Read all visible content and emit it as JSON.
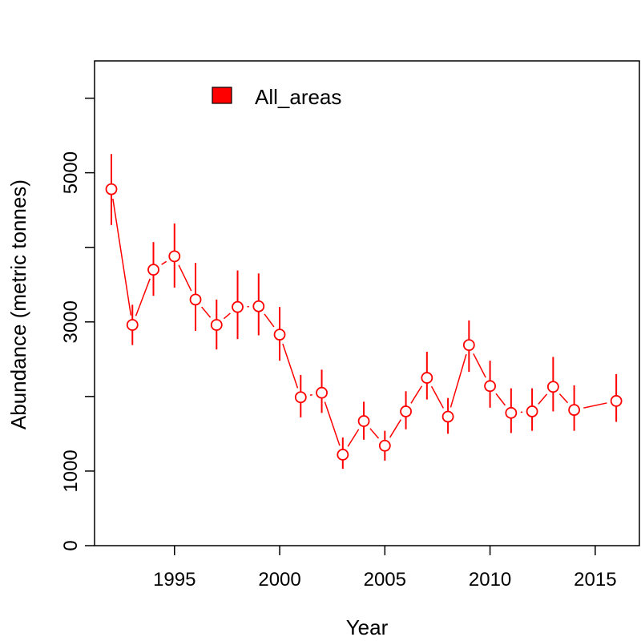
{
  "chart_data": {
    "type": "scatter",
    "title": "",
    "xlabel": "Year",
    "ylabel": "Abundance (metric tonnes)",
    "xlim": [
      1991.2,
      2017.1
    ],
    "ylim": [
      0,
      6500
    ],
    "x_ticks": [
      1995,
      2000,
      2005,
      2010,
      2015
    ],
    "y_ticks": [
      0,
      1000,
      3000,
      5000
    ],
    "grid": false,
    "legend_position": "top-left",
    "series": [
      {
        "name": "All_areas",
        "color": "#ff0000",
        "points": [
          {
            "x": 1992,
            "y": 4780,
            "lo": 4300,
            "hi": 5250
          },
          {
            "x": 1993,
            "y": 2960,
            "lo": 2690,
            "hi": 3230
          },
          {
            "x": 1994,
            "y": 3700,
            "lo": 3350,
            "hi": 4070
          },
          {
            "x": 1995,
            "y": 3880,
            "lo": 3460,
            "hi": 4320
          },
          {
            "x": 1996,
            "y": 3300,
            "lo": 2880,
            "hi": 3790
          },
          {
            "x": 1997,
            "y": 2960,
            "lo": 2630,
            "hi": 3300
          },
          {
            "x": 1998,
            "y": 3200,
            "lo": 2770,
            "hi": 3690
          },
          {
            "x": 1999,
            "y": 3210,
            "lo": 2820,
            "hi": 3650
          },
          {
            "x": 2000,
            "y": 2830,
            "lo": 2480,
            "hi": 3200
          },
          {
            "x": 2001,
            "y": 1990,
            "lo": 1720,
            "hi": 2290
          },
          {
            "x": 2002,
            "y": 2050,
            "lo": 1780,
            "hi": 2360
          },
          {
            "x": 2003,
            "y": 1220,
            "lo": 1030,
            "hi": 1450
          },
          {
            "x": 2004,
            "y": 1670,
            "lo": 1420,
            "hi": 1930
          },
          {
            "x": 2005,
            "y": 1340,
            "lo": 1140,
            "hi": 1540
          },
          {
            "x": 2006,
            "y": 1800,
            "lo": 1560,
            "hi": 2070
          },
          {
            "x": 2007,
            "y": 2250,
            "lo": 1960,
            "hi": 2600
          },
          {
            "x": 2008,
            "y": 1730,
            "lo": 1500,
            "hi": 1980
          },
          {
            "x": 2009,
            "y": 2690,
            "lo": 2330,
            "hi": 3020
          },
          {
            "x": 2010,
            "y": 2140,
            "lo": 1850,
            "hi": 2480
          },
          {
            "x": 2011,
            "y": 1780,
            "lo": 1510,
            "hi": 2110
          },
          {
            "x": 2012,
            "y": 1800,
            "lo": 1540,
            "hi": 2110
          },
          {
            "x": 2013,
            "y": 2130,
            "lo": 1800,
            "hi": 2530
          },
          {
            "x": 2014,
            "y": 1820,
            "lo": 1540,
            "hi": 2150
          },
          {
            "x": 2016,
            "y": 1940,
            "lo": 1660,
            "hi": 2300
          }
        ]
      }
    ]
  }
}
